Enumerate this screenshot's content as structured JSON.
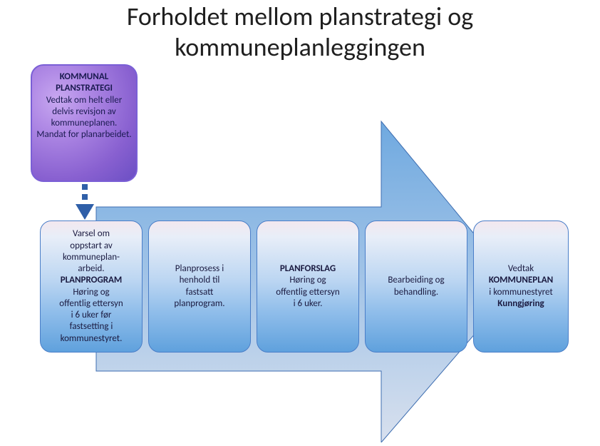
{
  "title_line1": "Forholdet mellom planstrategi og",
  "title_line2": "kommuneplanleggingen",
  "purple": {
    "header1": "KOMMUNAL",
    "header2": "PLANSTRATEGI",
    "body": "Vedtak om helt eller delvis revisjon av kommuneplanen. Mandat for planarbeidet."
  },
  "arrow": {
    "fill_top": "#6fa9e0",
    "fill_bottom": "#d8e0ee",
    "stroke": "#3d6db0"
  },
  "dash_arrow_color": "#2f5fa8",
  "step_style": {
    "border": "#4a7ec8",
    "grad_top": "#f3e8ef",
    "grad_bottom": "#5fa1dd"
  },
  "steps": [
    {
      "lines": [
        {
          "t": "Varsel om",
          "b": false
        },
        {
          "t": "oppstart av",
          "b": false
        },
        {
          "t": "kommuneplan-",
          "b": false
        },
        {
          "t": "arbeid.",
          "b": false
        },
        {
          "t": "PLANPROGRAM",
          "b": true
        },
        {
          "t": "Høring og",
          "b": false
        },
        {
          "t": "offentlig ettersyn",
          "b": false
        },
        {
          "t": "i 6 uker før",
          "b": false
        },
        {
          "t": "fastsetting i",
          "b": false
        },
        {
          "t": "kommunestyret.",
          "b": false
        }
      ]
    },
    {
      "lines": [
        {
          "t": "Planprosess i",
          "b": false
        },
        {
          "t": "henhold til",
          "b": false
        },
        {
          "t": "fastsatt",
          "b": false
        },
        {
          "t": "planprogram.",
          "b": false
        }
      ]
    },
    {
      "lines": [
        {
          "t": "PLANFORSLAG",
          "b": true
        },
        {
          "t": "Høring og",
          "b": false
        },
        {
          "t": "offentlig ettersyn",
          "b": false
        },
        {
          "t": "i 6 uker.",
          "b": false
        }
      ]
    },
    {
      "lines": [
        {
          "t": "Bearbeiding og",
          "b": false
        },
        {
          "t": "behandling.",
          "b": false
        }
      ]
    },
    {
      "lines": [
        {
          "t": "Vedtak",
          "b": false
        },
        {
          "t": "KOMMUNEPLAN",
          "b": true
        },
        {
          "t": "i kommunestyret",
          "b": false
        },
        {
          "t": "Kunngjøring",
          "b": true
        }
      ]
    }
  ]
}
